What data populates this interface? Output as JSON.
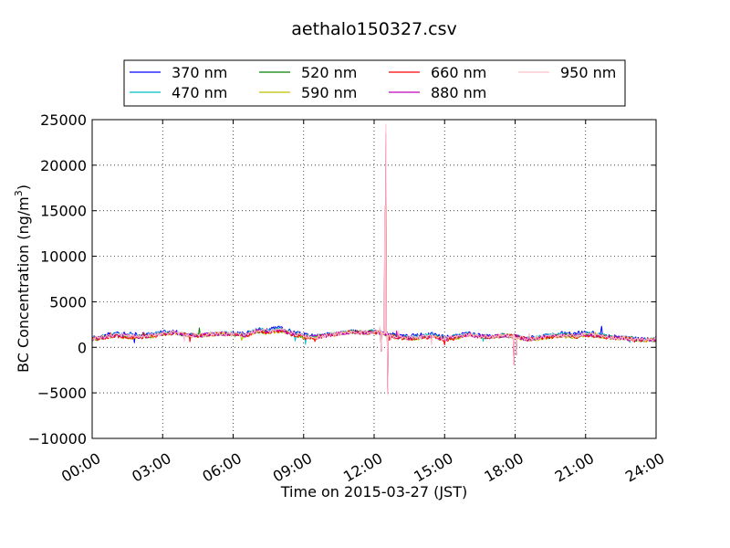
{
  "chart_data": {
    "type": "line",
    "title": "aethalo150327.csv",
    "xlabel": "Time on 2015-03-27 (JST)",
    "ylabel": {
      "prefix": "BC Concentration (ng/m",
      "superscript": "3",
      "suffix": ")"
    },
    "x_range_hours": [
      0,
      24
    ],
    "ylim": [
      -10000,
      25000
    ],
    "grid": true,
    "legend_placement": "top-center",
    "x_ticks": [
      {
        "value": 0,
        "label": "00:00"
      },
      {
        "value": 3,
        "label": "03:00"
      },
      {
        "value": 6,
        "label": "06:00"
      },
      {
        "value": 9,
        "label": "09:00"
      },
      {
        "value": 12,
        "label": "12:00"
      },
      {
        "value": 15,
        "label": "15:00"
      },
      {
        "value": 18,
        "label": "18:00"
      },
      {
        "value": 21,
        "label": "21:00"
      },
      {
        "value": 24,
        "label": "24:00"
      }
    ],
    "y_ticks": [
      {
        "value": 25000,
        "label": "25000"
      },
      {
        "value": 20000,
        "label": "20000"
      },
      {
        "value": 15000,
        "label": "15000"
      },
      {
        "value": 10000,
        "label": "10000"
      },
      {
        "value": 5000,
        "label": "5000"
      },
      {
        "value": 0,
        "label": "0"
      },
      {
        "value": -5000,
        "label": "−5000"
      },
      {
        "value": -10000,
        "label": "−10000"
      }
    ],
    "base_profile_hours": [
      0,
      0.5,
      1,
      1.5,
      2,
      2.5,
      3,
      3.5,
      4,
      4.5,
      5,
      5.5,
      6,
      6.5,
      7,
      7.5,
      8,
      8.5,
      9,
      9.5,
      10,
      10.5,
      11,
      11.5,
      12,
      12.4,
      13,
      13.5,
      14,
      14.5,
      15,
      15.5,
      16,
      16.5,
      17,
      17.5,
      18,
      18.5,
      19,
      19.5,
      20,
      20.5,
      21,
      21.5,
      22,
      22.5,
      23,
      23.5,
      24
    ],
    "base_profile_values": [
      900,
      1100,
      1300,
      1200,
      1150,
      1250,
      1500,
      1600,
      1350,
      1300,
      1400,
      1500,
      1450,
      1300,
      1800,
      1700,
      1900,
      1500,
      1200,
      1100,
      1300,
      1500,
      1700,
      1600,
      1700,
      1500,
      1100,
      1000,
      1100,
      1200,
      900,
      1100,
      1400,
      1200,
      1100,
      1300,
      1200,
      900,
      1000,
      1200,
      1300,
      1200,
      1400,
      1300,
      1100,
      1000,
      900,
      800,
      850
    ],
    "series": [
      {
        "name": "370 nm",
        "color": "#0000ff",
        "offset": 250
      },
      {
        "name": "470 nm",
        "color": "#00bfbf",
        "offset": 150
      },
      {
        "name": "520 nm",
        "color": "#008000",
        "offset": 0
      },
      {
        "name": "590 nm",
        "color": "#bfbf00",
        "offset": -80
      },
      {
        "name": "660 nm",
        "color": "#ff0000",
        "offset": -50
      },
      {
        "name": "880 nm",
        "color": "#bf00bf",
        "offset": 30
      },
      {
        "name": "950 nm",
        "color": "#ffc0cb",
        "offset": 80
      }
    ],
    "events": [
      {
        "hour": 12.3,
        "value": -400
      },
      {
        "hour": 12.45,
        "value": 15500
      },
      {
        "hour": 12.5,
        "value": 24500
      },
      {
        "hour": 12.58,
        "value": -5200
      },
      {
        "hour": 12.7,
        "value": 800
      },
      {
        "hour": 17.95,
        "value": -2000
      },
      {
        "hour": 18.05,
        "value": -800
      }
    ]
  }
}
